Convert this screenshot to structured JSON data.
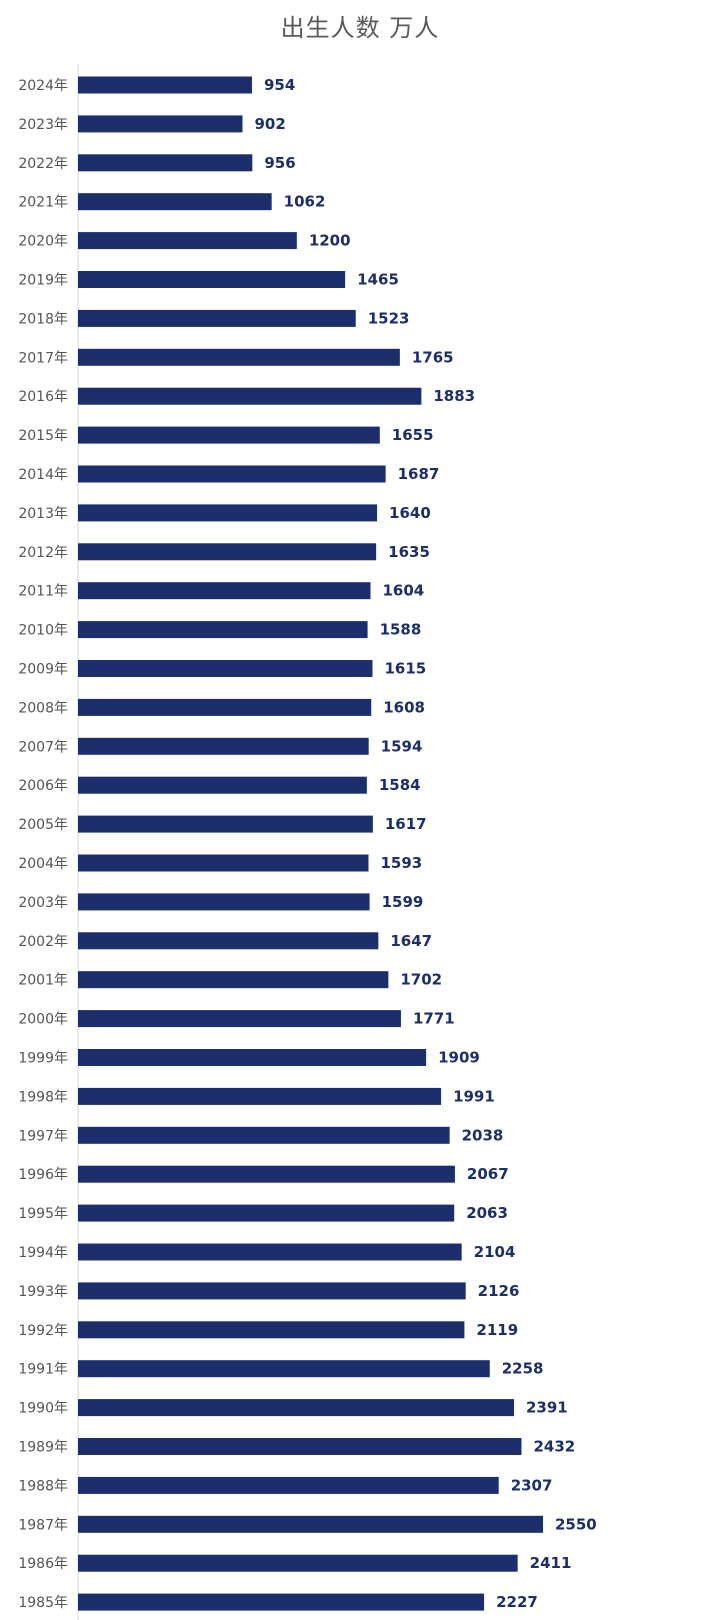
{
  "chart_data": {
    "type": "bar",
    "orientation": "horizontal",
    "title": "出生人数 万人",
    "categories": [
      "2024年",
      "2023年",
      "2022年",
      "2021年",
      "2020年",
      "2019年",
      "2018年",
      "2017年",
      "2016年",
      "2015年",
      "2014年",
      "2013年",
      "2012年",
      "2011年",
      "2010年",
      "2009年",
      "2008年",
      "2007年",
      "2006年",
      "2005年",
      "2004年",
      "2003年",
      "2002年",
      "2001年",
      "2000年",
      "1999年",
      "1998年",
      "1997年",
      "1996年",
      "1995年",
      "1994年",
      "1993年",
      "1992年",
      "1991年",
      "1990年",
      "1989年",
      "1988年",
      "1987年",
      "1986年",
      "1985年"
    ],
    "values": [
      954,
      902,
      956,
      1062,
      1200,
      1465,
      1523,
      1765,
      1883,
      1655,
      1687,
      1640,
      1635,
      1604,
      1588,
      1615,
      1608,
      1594,
      1584,
      1617,
      1593,
      1599,
      1647,
      1702,
      1771,
      1909,
      1991,
      2038,
      2067,
      2063,
      2104,
      2126,
      2119,
      2258,
      2391,
      2432,
      2307,
      2550,
      2411,
      2227
    ],
    "bar_color": "#1c2e6b",
    "label_color": "#1c2e6b",
    "xlim": [
      0,
      2550
    ],
    "grid": false,
    "legend": "none",
    "data_labels": true
  }
}
